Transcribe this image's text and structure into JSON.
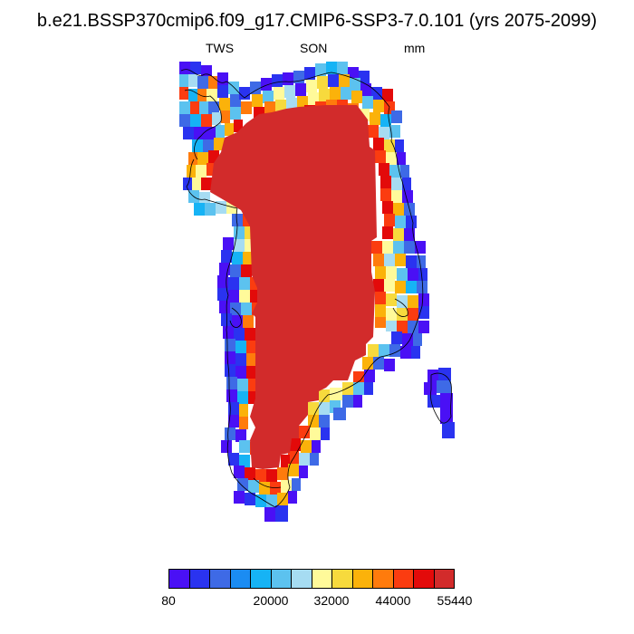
{
  "title": "b.e21.BSSP370cmip6.f09_g17.CMIP6-SSP3-7.0.101 (yrs 2075-2099)",
  "subtitle": {
    "left": "TWS",
    "center": "SON",
    "right": "mm"
  },
  "region": "Greenland",
  "colorbar": {
    "colors": [
      "#4a10f5",
      "#2a33f0",
      "#3e6ae6",
      "#1b8cf2",
      "#16b3f5",
      "#5cc2ef",
      "#a6dcf2",
      "#fffa9a",
      "#f7da3d",
      "#fbb20a",
      "#ff7b0c",
      "#fb3c10",
      "#e30a0a",
      "#d22b2b"
    ],
    "labels": [
      "80",
      "20000",
      "32000",
      "44000",
      "55440"
    ]
  }
}
